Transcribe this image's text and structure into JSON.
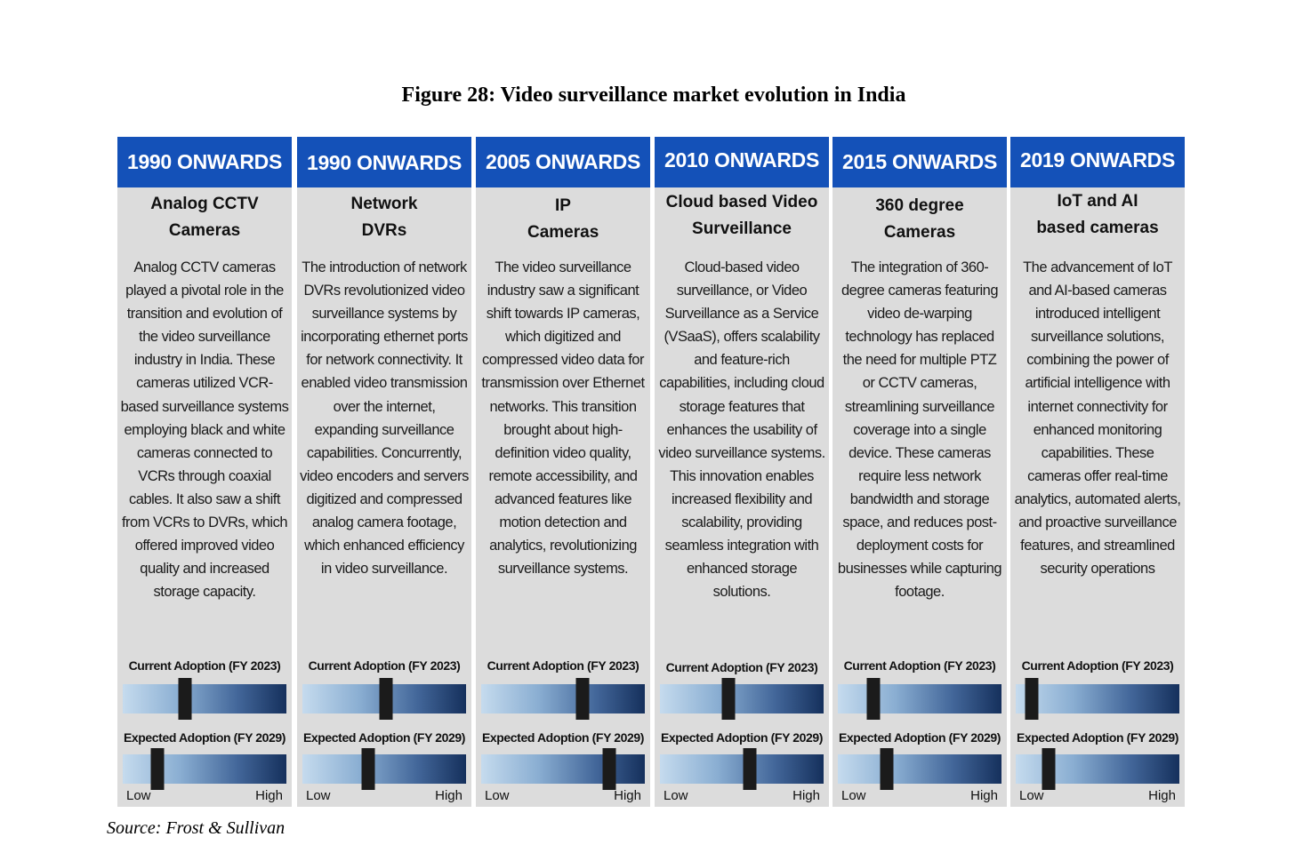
{
  "figure_title": "Figure 28: Video surveillance market evolution in India",
  "source": "Source: Frost & Sullivan",
  "scale": {
    "low": "Low",
    "high": "High"
  },
  "labels": {
    "current": "Current Adoption (FY 2023)",
    "expected": "Expected Adoption (FY 2029)"
  },
  "colors": {
    "header_bg": "#1451b8",
    "body_bg": "#dcdcdc",
    "marker": "#1b1b1b",
    "gradient_low": "#c5dbee",
    "gradient_high": "#15305c"
  },
  "columns": [
    {
      "period": "1990 ONWARDS",
      "title": "Analog CCTV Cameras",
      "description": "Analog CCTV cameras played a pivotal role in the transition and evolution of the video surveillance industry in India. These cameras utilized VCR-based surveillance systems employing black and white cameras connected to VCRs through coaxial cables. It also saw a shift from VCRs to DVRs, which offered improved video quality and increased storage capacity.",
      "current_adoption": 0.38,
      "expected_adoption": 0.21
    },
    {
      "period": "1990 ONWARDS",
      "title": "Network DVRs",
      "description": "The introduction of network DVRs revolutionized video surveillance systems by incorporating ethernet ports for network connectivity. It enabled video transmission over the internet, expanding surveillance capabilities. Concurrently, video encoders and servers digitized and compressed analog camera footage, which enhanced efficiency in video surveillance.",
      "current_adoption": 0.51,
      "expected_adoption": 0.4
    },
    {
      "period": "2005 ONWARDS",
      "title": "IP Cameras",
      "description": "The video surveillance industry saw a significant shift towards IP cameras, which digitized and compressed video data for transmission over Ethernet networks. This transition brought about high-definition video quality, remote accessibility, and advanced features like motion detection and analytics, revolutionizing surveillance systems.",
      "current_adoption": 0.62,
      "expected_adoption": 0.78
    },
    {
      "period": "2010 ONWARDS",
      "title": "Cloud based Video Surveillance",
      "description": "Cloud-based video surveillance, or Video Surveillance as a Service (VSaaS), offers scalability and feature-rich capabilities, including cloud storage features that enhances the usability of video surveillance systems. This innovation enables increased flexibility and scalability, providing seamless integration with enhanced storage solutions.",
      "current_adoption": 0.42,
      "expected_adoption": 0.55
    },
    {
      "period": "2015 ONWARDS",
      "title": "360 degree Cameras",
      "description": "The integration of 360-degree cameras featuring video de-warping technology has replaced the need for multiple PTZ or CCTV cameras, streamlining surveillance coverage into a single device. These cameras require less network bandwidth and storage space, and reduces post-deployment costs for businesses while capturing footage.",
      "current_adoption": 0.22,
      "expected_adoption": 0.3
    },
    {
      "period": "2019 ONWARDS",
      "title": "IoT and AI based cameras",
      "description": "The advancement of IoT and AI-based cameras introduced intelligent surveillance solutions, combining the power of artificial intelligence with internet connectivity for enhanced monitoring capabilities. These cameras offer real-time analytics, automated alerts, and proactive surveillance features, and streamlined security operations",
      "current_adoption": 0.1,
      "expected_adoption": 0.2
    }
  ]
}
